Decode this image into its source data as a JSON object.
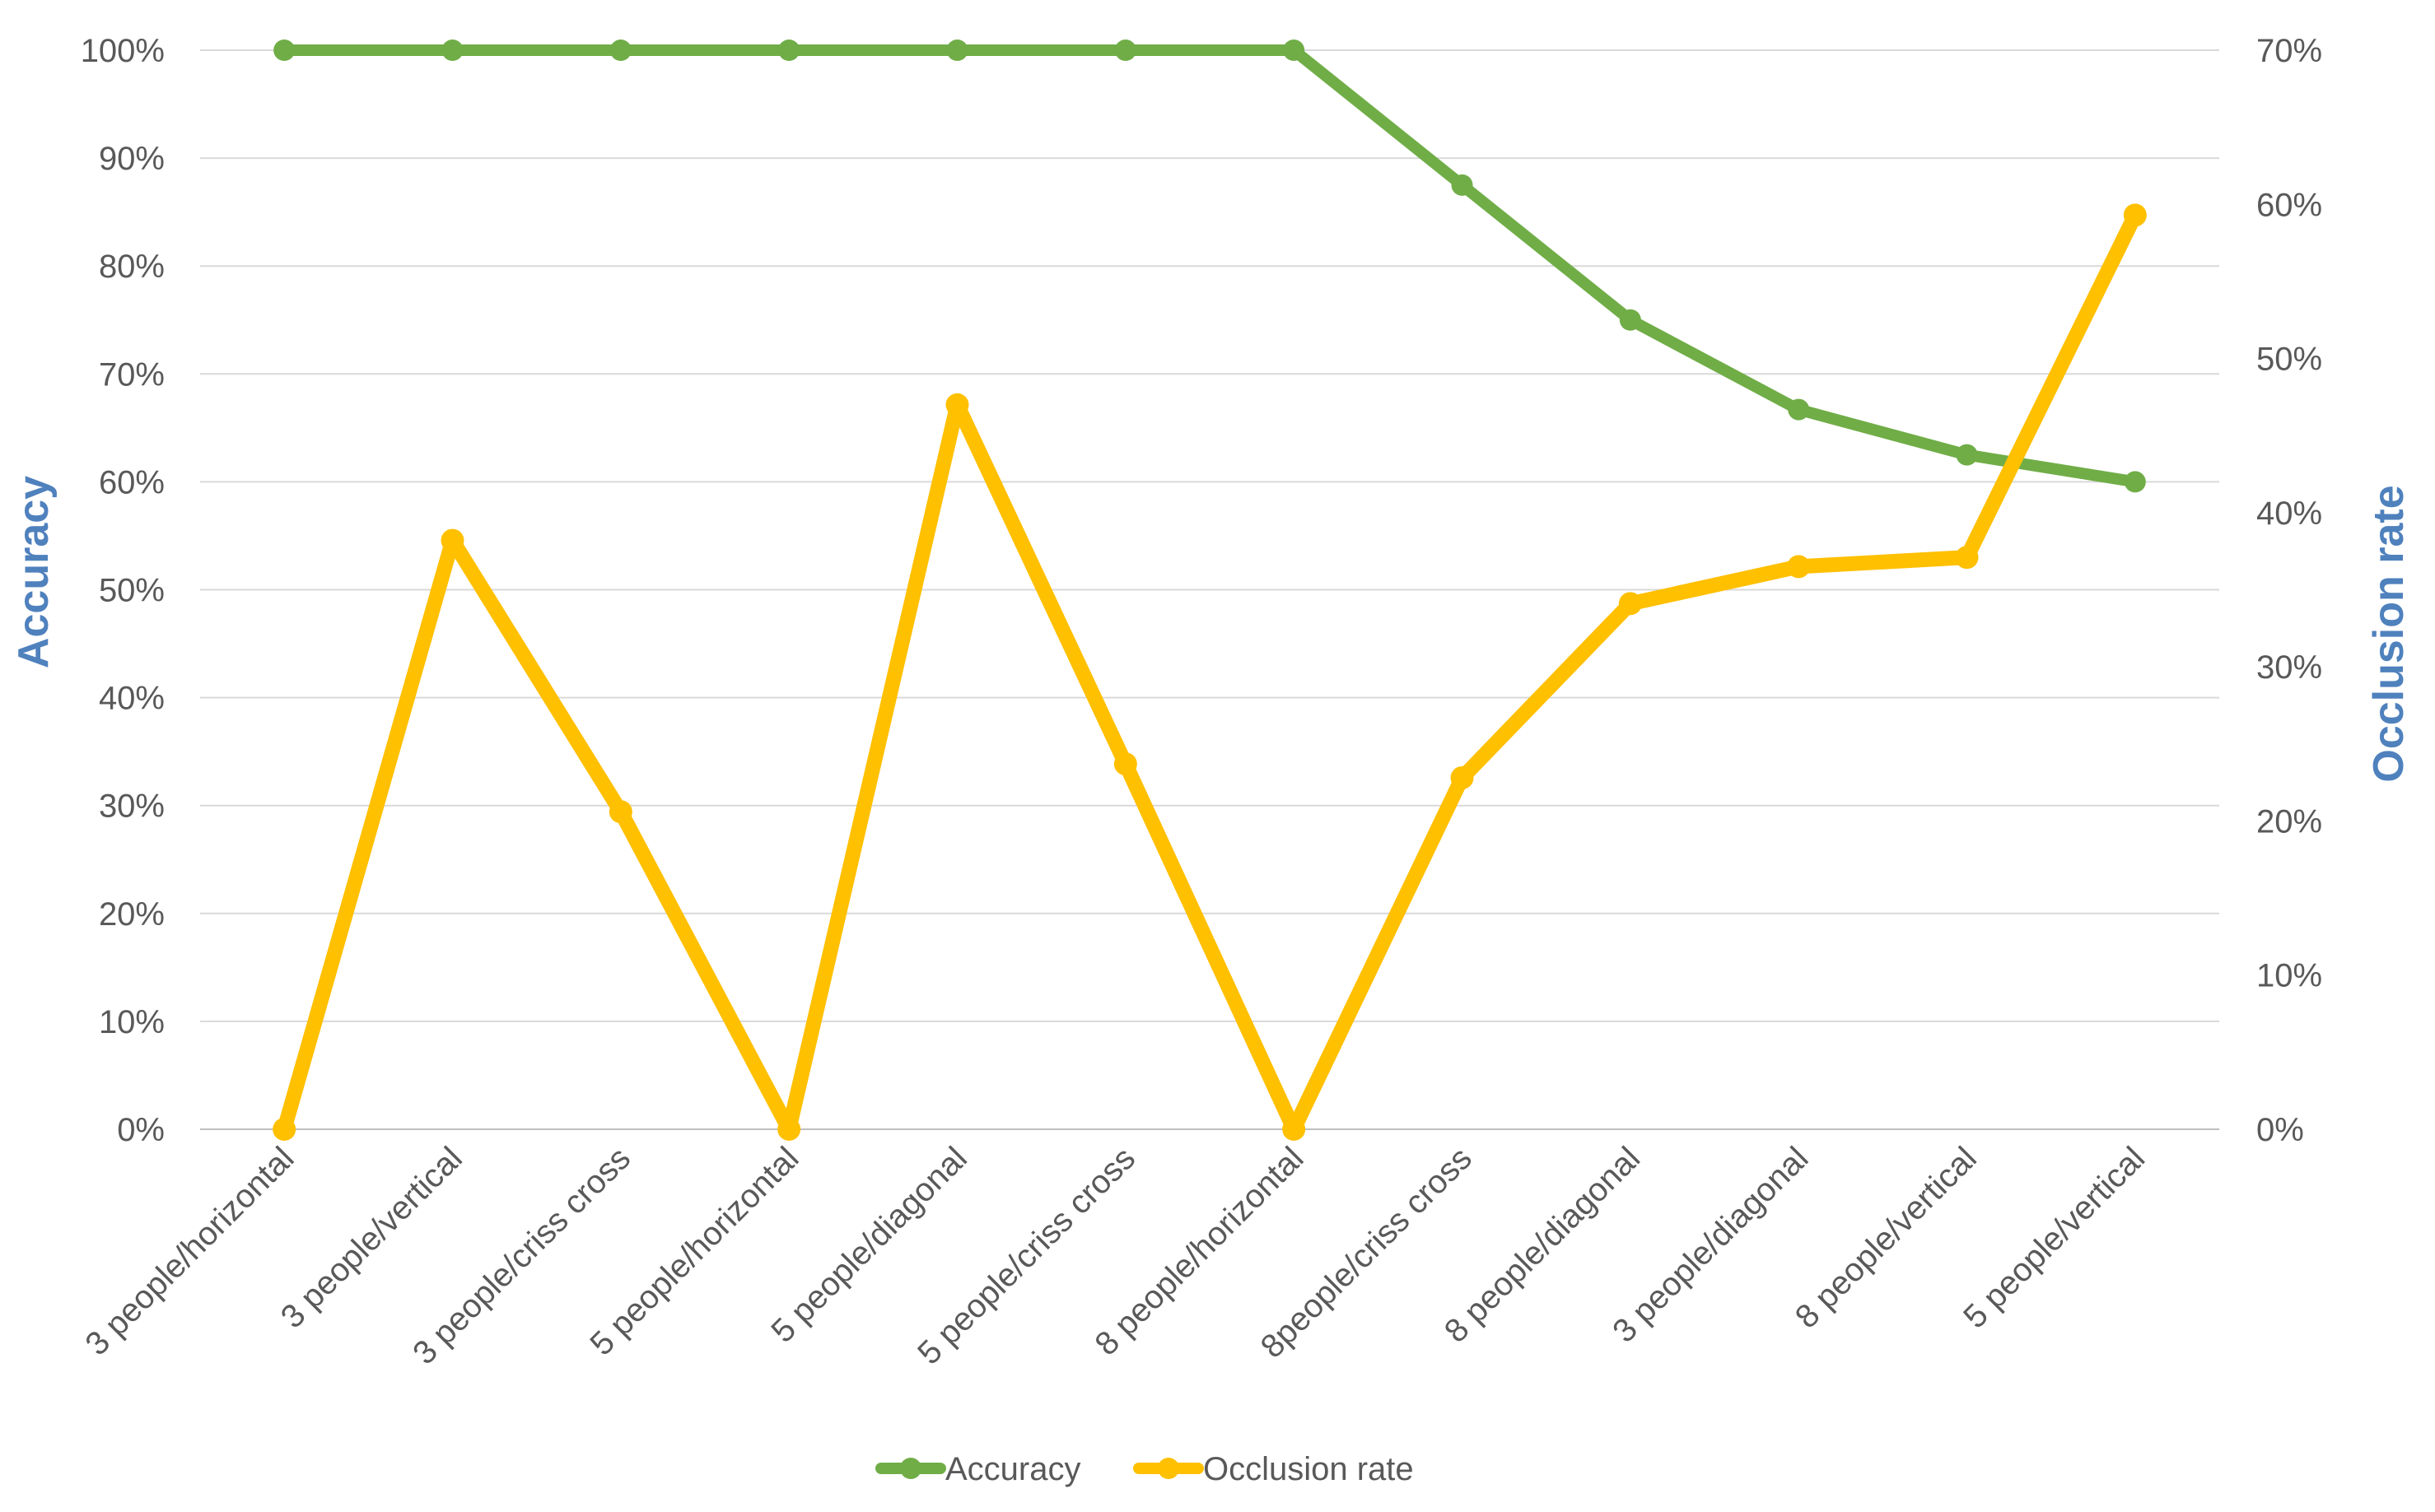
{
  "chart_data": {
    "type": "line",
    "categories": [
      "3 people/horizontal",
      "3 people/vertical",
      "3 people/criss cross",
      "5 people/horizontal",
      "5 people/diagonal",
      "5 people/criss cross",
      "8 people/horizontal",
      "8people/criss cross",
      "8 people/diagonal",
      "3 people/diagonal",
      "8 people/vertical",
      "5 people/vertical"
    ],
    "series": [
      {
        "name": "Accuracy",
        "axis": "left",
        "color": "#70ad47",
        "values": [
          100,
          100,
          100,
          100,
          100,
          100,
          100,
          87.5,
          75,
          66.7,
          62.5,
          60
        ]
      },
      {
        "name": "Occlusion rate",
        "axis": "right",
        "color": "#ffc000",
        "values": [
          0,
          38.2,
          20.6,
          0,
          47,
          23.7,
          0,
          22.8,
          34.1,
          36.5,
          37.1,
          59.3
        ]
      }
    ],
    "ylabel": "Accuracy",
    "y2label": "Occlusion rate",
    "ylim": [
      0,
      100
    ],
    "y2lim": [
      0,
      70
    ],
    "yticks": [
      "0%",
      "10%",
      "20%",
      "30%",
      "40%",
      "50%",
      "60%",
      "70%",
      "80%",
      "90%",
      "100%"
    ],
    "y2ticks": [
      "0%",
      "10%",
      "20%",
      "30%",
      "40%",
      "50%",
      "60%",
      "70%"
    ],
    "grid": true,
    "legend": "bottom"
  }
}
